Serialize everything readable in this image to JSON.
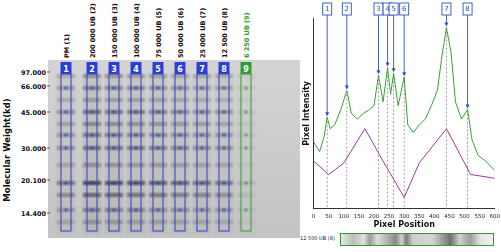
{
  "chart_data": [
    {
      "type": "gel",
      "y_label": "Molecular Weight(kd)",
      "marker_labels": [
        "97.000",
        "66.000",
        "45.000",
        "30.000",
        "20.100",
        "14.400"
      ],
      "lanes": [
        {
          "number": "1",
          "label": "PM (1)",
          "color": "#2b3fd6"
        },
        {
          "number": "2",
          "label": "200 000 UB (2)",
          "color": "#2b3fd6"
        },
        {
          "number": "3",
          "label": "150 000 UB (3)",
          "color": "#2b3fd6"
        },
        {
          "number": "4",
          "label": "100 000 UB (4)",
          "color": "#2b3fd6"
        },
        {
          "number": "5",
          "label": "75 000 UB (5)",
          "color": "#2b3fd6"
        },
        {
          "number": "6",
          "label": "50 000 UB (6)",
          "color": "#2b3fd6"
        },
        {
          "number": "7",
          "label": "25 000 UB (7)",
          "color": "#2b3fd6"
        },
        {
          "number": "8",
          "label": "12 500 UB (8)",
          "color": "#2b3fd6"
        },
        {
          "number": "9",
          "label": "6 250 UB (9)",
          "color": "#2e9e2e"
        }
      ]
    },
    {
      "type": "line",
      "x_label": "Pixel Position",
      "y_label": "Pixel Intensity",
      "xlim": [
        0,
        600
      ],
      "xticks": [
        0,
        50,
        100,
        150,
        200,
        250,
        300,
        350,
        400,
        450,
        500,
        550,
        600
      ],
      "ylim": [
        0,
        100
      ],
      "tick_labels": "x",
      "grid": false,
      "series": [
        {
          "color": "#3aa13a",
          "x": [
            0,
            20,
            35,
            45,
            55,
            70,
            90,
            110,
            125,
            145,
            165,
            185,
            200,
            215,
            230,
            245,
            255,
            265,
            280,
            300,
            312,
            330,
            350,
            370,
            390,
            410,
            425,
            440,
            455,
            470,
            490,
            510,
            525,
            545,
            570,
            600
          ],
          "values": [
            35,
            30,
            38,
            48,
            42,
            44,
            52,
            62,
            50,
            47,
            50,
            52,
            54,
            70,
            56,
            74,
            60,
            71,
            54,
            69,
            44,
            40,
            44,
            47,
            54,
            62,
            80,
            95,
            82,
            56,
            47,
            52,
            36,
            28,
            25,
            20
          ]
        },
        {
          "color": "#9b3c9b",
          "x": [
            0,
            50,
            100,
            170,
            230,
            300,
            350,
            440,
            520,
            600
          ],
          "values": [
            25,
            18,
            24,
            42,
            25,
            6,
            24,
            42,
            18,
            16
          ]
        }
      ],
      "peaks": [
        {
          "label": "1",
          "x": 45,
          "y": 48
        },
        {
          "label": "2",
          "x": 110,
          "y": 62
        },
        {
          "label": "3",
          "x": 215,
          "y": 70
        },
        {
          "label": "4",
          "x": 245,
          "y": 74
        },
        {
          "label": "5",
          "x": 265,
          "y": 71
        },
        {
          "label": "6",
          "x": 300,
          "y": 69
        },
        {
          "label": "7",
          "x": 440,
          "y": 95
        },
        {
          "label": "8",
          "x": 510,
          "y": 52
        }
      ],
      "strip_label": "12 500 UB (8)"
    }
  ]
}
